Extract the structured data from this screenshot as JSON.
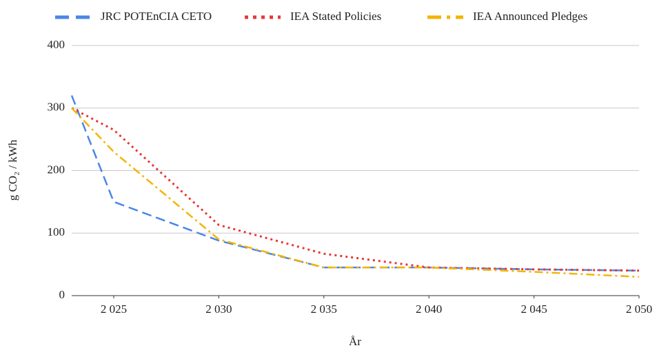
{
  "chart_data": {
    "type": "line",
    "x_label": "År",
    "y_label": "g CO₂ / kWh",
    "x": [
      2023,
      2025,
      2030,
      2035,
      2040,
      2045,
      2050
    ],
    "series": [
      {
        "name": "JRC POTEnCIA CETO",
        "color": "#4a86e8",
        "line_style": "dashed",
        "values": [
          320,
          150,
          88,
          45,
          45,
          42,
          40
        ]
      },
      {
        "name": "IEA Stated Policies",
        "color": "#e53935",
        "line_style": "dotted",
        "values": [
          300,
          265,
          113,
          67,
          45,
          42,
          40
        ]
      },
      {
        "name": "IEA Announced Pledges",
        "color": "#f4b400",
        "line_style": "dashdot",
        "values": [
          300,
          230,
          90,
          45,
          45,
          38,
          30
        ]
      }
    ],
    "xlim": [
      2023,
      2050
    ],
    "xticks": [
      {
        "value": 2025,
        "label": "2 025"
      },
      {
        "value": 2030,
        "label": "2 030"
      },
      {
        "value": 2035,
        "label": "2 035"
      },
      {
        "value": 2040,
        "label": "2 040"
      },
      {
        "value": 2045,
        "label": "2 045"
      },
      {
        "value": 2050,
        "label": "2 050"
      }
    ],
    "ylim": [
      0,
      400
    ],
    "yticks": [
      0,
      100,
      200,
      300,
      400
    ],
    "grid": true,
    "legend": "top"
  }
}
